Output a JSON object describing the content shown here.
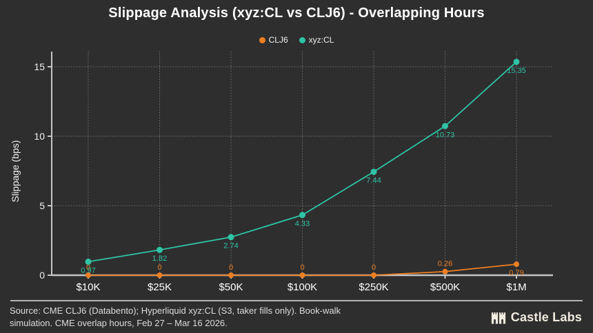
{
  "title": "Slippage Analysis (xyz:CL vs CLJ6) - Overlapping Hours",
  "chart_data": {
    "type": "line",
    "title": "Slippage Analysis (xyz:CL vs CLJ6) - Overlapping Hours",
    "xlabel": "",
    "ylabel": "Slippage (bps)",
    "categories": [
      "$10K",
      "$25K",
      "$50K",
      "$100K",
      "$250K",
      "$500K",
      "$1M"
    ],
    "series": [
      {
        "name": "CLJ6",
        "color": "#ed7f23",
        "values": [
          0,
          0,
          0,
          0,
          0,
          0.26,
          0.79
        ],
        "labels": [
          "0",
          "0",
          "0",
          "0",
          "0",
          "0.26",
          "0.79"
        ],
        "label_pos": [
          "above",
          "above",
          "above",
          "above",
          "above",
          "above",
          "below"
        ]
      },
      {
        "name": "xyz:CL",
        "color": "#2ec4a5",
        "values": [
          0.97,
          1.82,
          2.74,
          4.33,
          7.44,
          10.73,
          15.35
        ],
        "labels": [
          "0.97",
          "1.82",
          "2.74",
          "4.33",
          "7.44",
          "10.73",
          "15.35"
        ],
        "label_pos": [
          "below",
          "below",
          "below",
          "below",
          "below",
          "below",
          "below"
        ]
      }
    ],
    "ylim": [
      0,
      15.5
    ],
    "yticks": [
      0,
      5,
      10,
      15
    ],
    "grid": true,
    "legend_position": "top-center"
  },
  "footer": {
    "source_text": "Source: CME CLJ6 (Databento); Hyperliquid xyz:CL (S3, taker fills only). Book-walk simulation. CME overlap hours, Feb 27 – Mar 16 2026.",
    "brand": "Castle Labs"
  }
}
